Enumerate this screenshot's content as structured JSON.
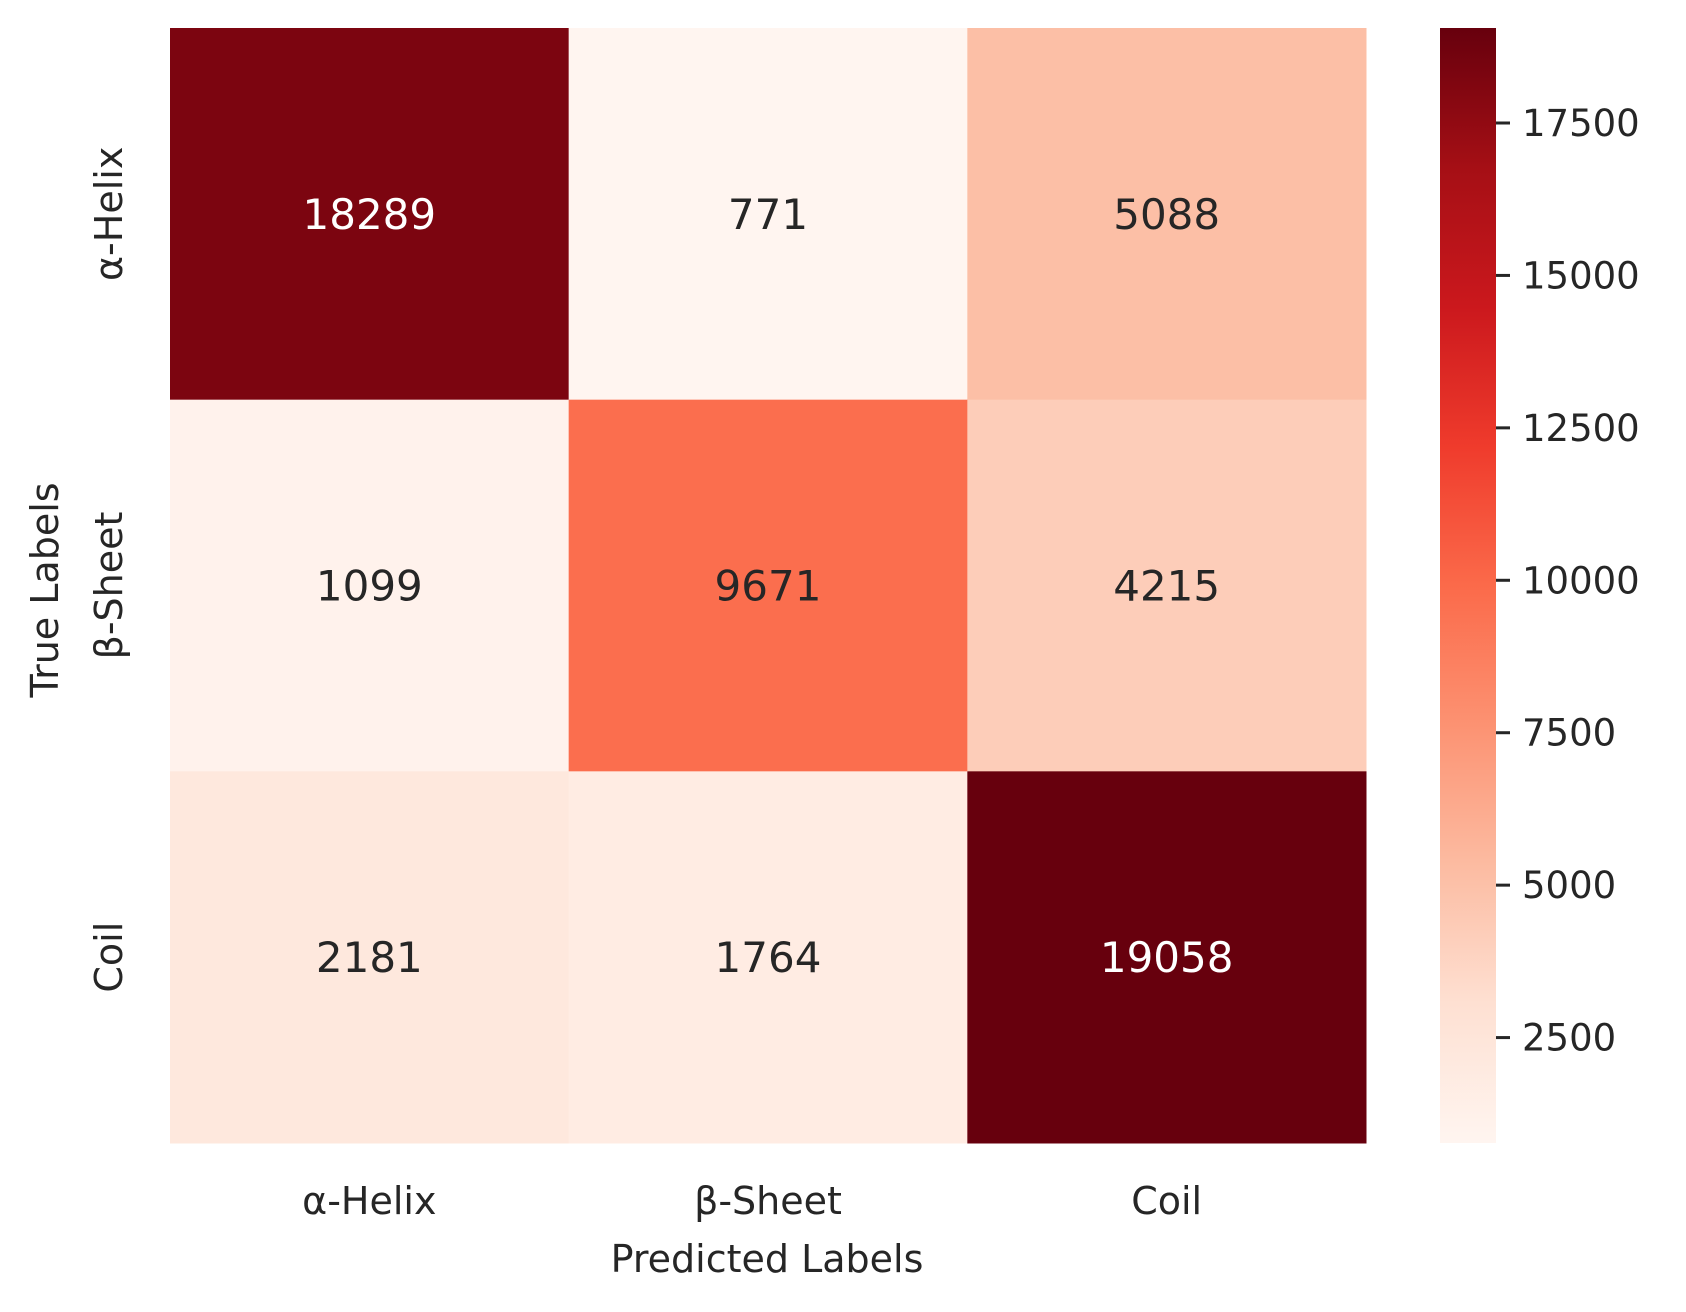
{
  "chart_data": {
    "type": "heatmap",
    "xlabel": "Predicted Labels",
    "ylabel": "True Labels",
    "x_categories": [
      "α-Helix",
      "β-Sheet",
      "Coil"
    ],
    "y_categories": [
      "α-Helix",
      "β-Sheet",
      "Coil"
    ],
    "values": [
      [
        18289,
        771,
        5088
      ],
      [
        1099,
        9671,
        4215
      ],
      [
        2181,
        1764,
        19058
      ]
    ],
    "colorbar": {
      "colormap": "Reds",
      "vmin": 771,
      "vmax": 19058,
      "ticks": [
        2500,
        5000,
        7500,
        10000,
        12500,
        15000,
        17500
      ],
      "tick_labels": [
        "2500",
        "5000",
        "7500",
        "10000",
        "12500",
        "15000",
        "17500"
      ]
    },
    "annotation_colors": {
      "dark": "#262626",
      "light": "#ffffff"
    },
    "grid": false
  }
}
